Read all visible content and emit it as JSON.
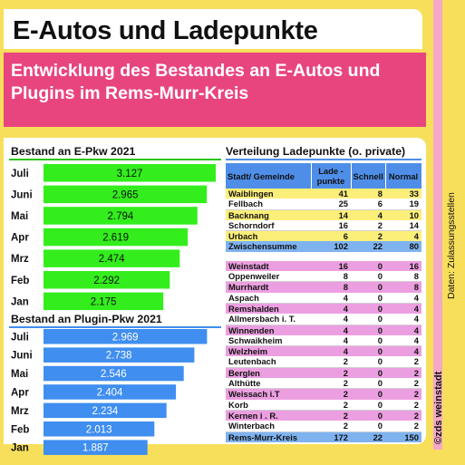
{
  "title": "E-Autos und Ladepunkte",
  "subtitle": "Entwicklung des Bestandes an E-Autos und Plugins im Rems-Murr-Kreis",
  "credit": {
    "brand": "©zds weinstadt",
    "source": "Daten: Zulassungsstellen"
  },
  "colors": {
    "background": "#f7df5c",
    "accent_pink": "#e8457f",
    "ev_green": "#33ee1c",
    "plugin_blue": "#3f8ef0",
    "table_header": "#4f8ee8"
  },
  "chart_data": [
    {
      "type": "bar",
      "orientation": "horizontal",
      "title": "Bestand an E-Pkw 2021",
      "categories": [
        "Juli",
        "Juni",
        "Mai",
        "Apr",
        "Mrz",
        "Feb",
        "Jan"
      ],
      "values": [
        3127,
        2965,
        2794,
        2619,
        2474,
        2292,
        2175
      ],
      "value_labels": [
        "3.127",
        "2.965",
        "2.794",
        "2.619",
        "2.474",
        "2.292",
        "2.175"
      ],
      "xlim": [
        0,
        3127
      ],
      "color": "#33ee1c"
    },
    {
      "type": "bar",
      "orientation": "horizontal",
      "title": "Bestand an Plugin-Pkw 2021",
      "categories": [
        "Juli",
        "Juni",
        "Mai",
        "Apr",
        "Mrz",
        "Feb",
        "Jan"
      ],
      "values": [
        2969,
        2738,
        2546,
        2404,
        2234,
        2013,
        1887
      ],
      "value_labels": [
        "2.969",
        "2.738",
        "2.546",
        "2.404",
        "2.234",
        "2.013",
        "1.887"
      ],
      "xlim": [
        0,
        3127
      ],
      "color": "#3f8ef0"
    },
    {
      "type": "table",
      "title": "Verteilung Ladepunkte (o. private)",
      "columns": [
        "Stadt/ Gemeinde",
        "Lade - punkte",
        "Schnell",
        "Normal"
      ],
      "rows": [
        {
          "name": "Waiblingen",
          "lade": "41",
          "schnell": "8",
          "normal": "33",
          "group": "yellow"
        },
        {
          "name": "Fellbach",
          "lade": "25",
          "schnell": "6",
          "normal": "19",
          "group": "white"
        },
        {
          "name": "Backnang",
          "lade": "14",
          "schnell": "4",
          "normal": "10",
          "group": "yellow"
        },
        {
          "name": "Schorndorf",
          "lade": "16",
          "schnell": "2",
          "normal": "14",
          "group": "white"
        },
        {
          "name": "Urbach",
          "lade": "6",
          "schnell": "2",
          "normal": "4",
          "group": "yellow"
        },
        {
          "name": "Zwischensumme",
          "lade": "102",
          "schnell": "22",
          "normal": "80",
          "group": "blue"
        },
        {
          "name": "Weinstadt",
          "lade": "16",
          "schnell": "0",
          "normal": "16",
          "group": "pink"
        },
        {
          "name": "Oppenweiler",
          "lade": "8",
          "schnell": "0",
          "normal": "8",
          "group": "white"
        },
        {
          "name": "Murrhardt",
          "lade": "8",
          "schnell": "0",
          "normal": "8",
          "group": "pink"
        },
        {
          "name": "Aspach",
          "lade": "4",
          "schnell": "0",
          "normal": "4",
          "group": "white"
        },
        {
          "name": "Remshalden",
          "lade": "4",
          "schnell": "0",
          "normal": "4",
          "group": "pink"
        },
        {
          "name": "Allmersbach i. T.",
          "lade": "4",
          "schnell": "0",
          "normal": "4",
          "group": "white"
        },
        {
          "name": "Winnenden",
          "lade": "4",
          "schnell": "0",
          "normal": "4",
          "group": "pink"
        },
        {
          "name": "Schwaikheim",
          "lade": "4",
          "schnell": "0",
          "normal": "4",
          "group": "white"
        },
        {
          "name": "Welzheim",
          "lade": "4",
          "schnell": "0",
          "normal": "4",
          "group": "pink"
        },
        {
          "name": "Leutenbach",
          "lade": "2",
          "schnell": "0",
          "normal": "2",
          "group": "white"
        },
        {
          "name": "Berglen",
          "lade": "2",
          "schnell": "0",
          "normal": "2",
          "group": "pink"
        },
        {
          "name": "Althütte",
          "lade": "2",
          "schnell": "0",
          "normal": "2",
          "group": "white"
        },
        {
          "name": "Weissach  i.T",
          "lade": "2",
          "schnell": "0",
          "normal": "2",
          "group": "pink"
        },
        {
          "name": "Korb",
          "lade": "2",
          "schnell": "0",
          "normal": "2",
          "group": "white"
        },
        {
          "name": "Kernen i . R.",
          "lade": "2",
          "schnell": "0",
          "normal": "2",
          "group": "pink"
        },
        {
          "name": "Winterbach",
          "lade": "2",
          "schnell": "0",
          "normal": "2",
          "group": "white"
        },
        {
          "name": "Rems-Murr-Kreis",
          "lade": "172",
          "schnell": "22",
          "normal": "150",
          "group": "blue"
        }
      ]
    }
  ]
}
